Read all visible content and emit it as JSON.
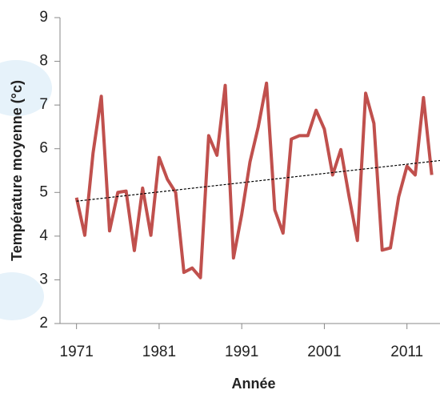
{
  "chart_data": {
    "type": "line",
    "x_label": "Année",
    "y_label": "Température moyenne (°c)",
    "x": [
      1971,
      1972,
      1973,
      1974,
      1975,
      1976,
      1977,
      1978,
      1979,
      1980,
      1981,
      1982,
      1983,
      1984,
      1985,
      1986,
      1987,
      1988,
      1989,
      1990,
      1991,
      1992,
      1993,
      1994,
      1995,
      1996,
      1997,
      1998,
      1999,
      2000,
      2001,
      2002,
      2003,
      2004,
      2005,
      2006,
      2007,
      2008,
      2009,
      2010,
      2011,
      2012,
      2013,
      2014
    ],
    "values": [
      4.88,
      4.02,
      5.9,
      7.2,
      4.12,
      5.0,
      5.03,
      3.67,
      5.1,
      4.02,
      5.8,
      5.3,
      5.0,
      3.17,
      3.27,
      3.05,
      6.3,
      5.85,
      7.45,
      3.5,
      4.5,
      5.7,
      6.5,
      7.5,
      4.6,
      4.07,
      6.22,
      6.3,
      6.3,
      6.88,
      6.45,
      5.4,
      5.98,
      4.9,
      3.9,
      7.27,
      6.58,
      3.68,
      3.73,
      4.9,
      5.6,
      5.4,
      7.17,
      5.4
    ],
    "color": "#c0504d",
    "trend": {
      "x": [
        1971,
        2015
      ],
      "values": [
        4.8,
        5.73
      ],
      "color": "#000000"
    },
    "xlim": [
      1969,
      2015
    ],
    "ylim": [
      2,
      9
    ],
    "xticks": [
      1971,
      1981,
      1991,
      2001,
      2011
    ],
    "yticks": [
      2,
      3,
      4,
      5,
      6,
      7,
      8,
      9
    ]
  }
}
